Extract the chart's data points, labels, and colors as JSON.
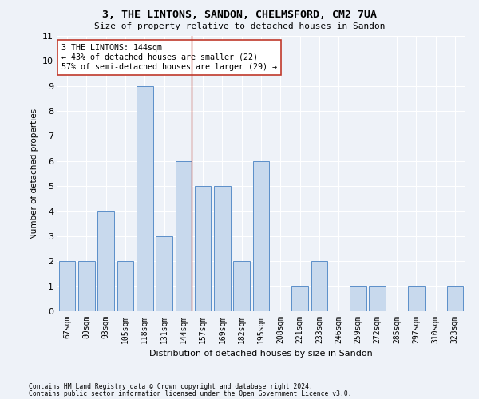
{
  "title1": "3, THE LINTONS, SANDON, CHELMSFORD, CM2 7UA",
  "title2": "Size of property relative to detached houses in Sandon",
  "xlabel": "Distribution of detached houses by size in Sandon",
  "ylabel": "Number of detached properties",
  "categories": [
    "67sqm",
    "80sqm",
    "93sqm",
    "105sqm",
    "118sqm",
    "131sqm",
    "144sqm",
    "157sqm",
    "169sqm",
    "182sqm",
    "195sqm",
    "208sqm",
    "221sqm",
    "233sqm",
    "246sqm",
    "259sqm",
    "272sqm",
    "285sqm",
    "297sqm",
    "310sqm",
    "323sqm"
  ],
  "values": [
    2,
    2,
    4,
    2,
    9,
    3,
    6,
    5,
    5,
    2,
    6,
    0,
    1,
    2,
    0,
    1,
    1,
    0,
    1,
    0,
    1
  ],
  "highlight_index": 6,
  "bar_color": "#c8d9ed",
  "bar_edge_color": "#5b8fc9",
  "highlight_line_color": "#c0392b",
  "annotation_text": "3 THE LINTONS: 144sqm\n← 43% of detached houses are smaller (22)\n57% of semi-detached houses are larger (29) →",
  "annotation_box_color": "#ffffff",
  "annotation_box_edge": "#c0392b",
  "ylim": [
    0,
    11
  ],
  "yticks": [
    0,
    1,
    2,
    3,
    4,
    5,
    6,
    7,
    8,
    9,
    10,
    11
  ],
  "footer1": "Contains HM Land Registry data © Crown copyright and database right 2024.",
  "footer2": "Contains public sector information licensed under the Open Government Licence v3.0.",
  "bg_color": "#eef2f8",
  "grid_color": "#ffffff"
}
